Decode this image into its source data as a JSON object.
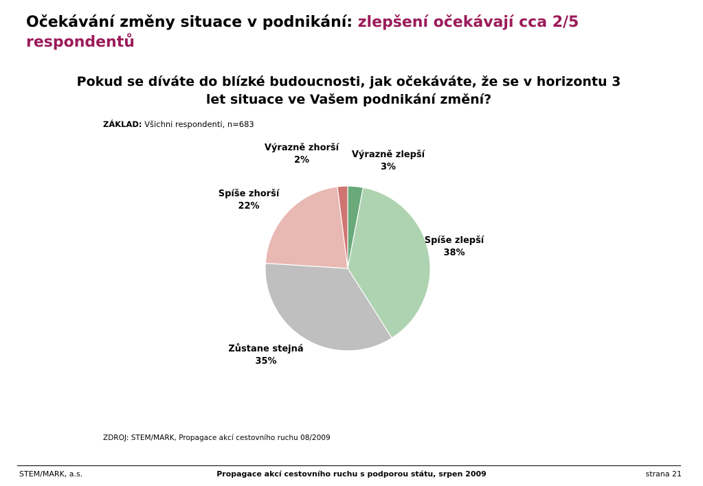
{
  "title": {
    "main": "Očekávání změny situace v podnikání:",
    "highlight": "zlepšení očekávají cca 2/5 respondentů"
  },
  "question": "Pokud se díváte do blízké budoucnosti, jak očekáváte, že se v horizontu 3 let situace ve Vašem podnikání změní?",
  "base": {
    "label": "ZÁKLAD:",
    "text": "Všichni respondenti, n=683"
  },
  "chart_data": {
    "type": "pie",
    "slices": [
      {
        "name": "Výrazně zlepší",
        "value": 3,
        "display": "3%",
        "color": "#6aa97a"
      },
      {
        "name": "Spíše zlepší",
        "value": 38,
        "display": "38%",
        "color": "#aed3b1"
      },
      {
        "name": "Zůstane stejná",
        "value": 35,
        "display": "35%",
        "color": "#bfbfbf"
      },
      {
        "name": "Spíše zhorší",
        "value": 22,
        "display": "22%",
        "color": "#e8b8b2"
      },
      {
        "name": "Výrazně zhorší",
        "value": 2,
        "display": "2%",
        "color": "#cf7470"
      }
    ]
  },
  "source": "ZDROJ: STEM/MARK, Propagace akcí cestovního ruchu 08/2009",
  "footer": {
    "left": "STEM/MARK, a.s.",
    "center": "Propagace akcí cestovního ruchu s podporou státu, srpen 2009",
    "right": "strana 21"
  }
}
